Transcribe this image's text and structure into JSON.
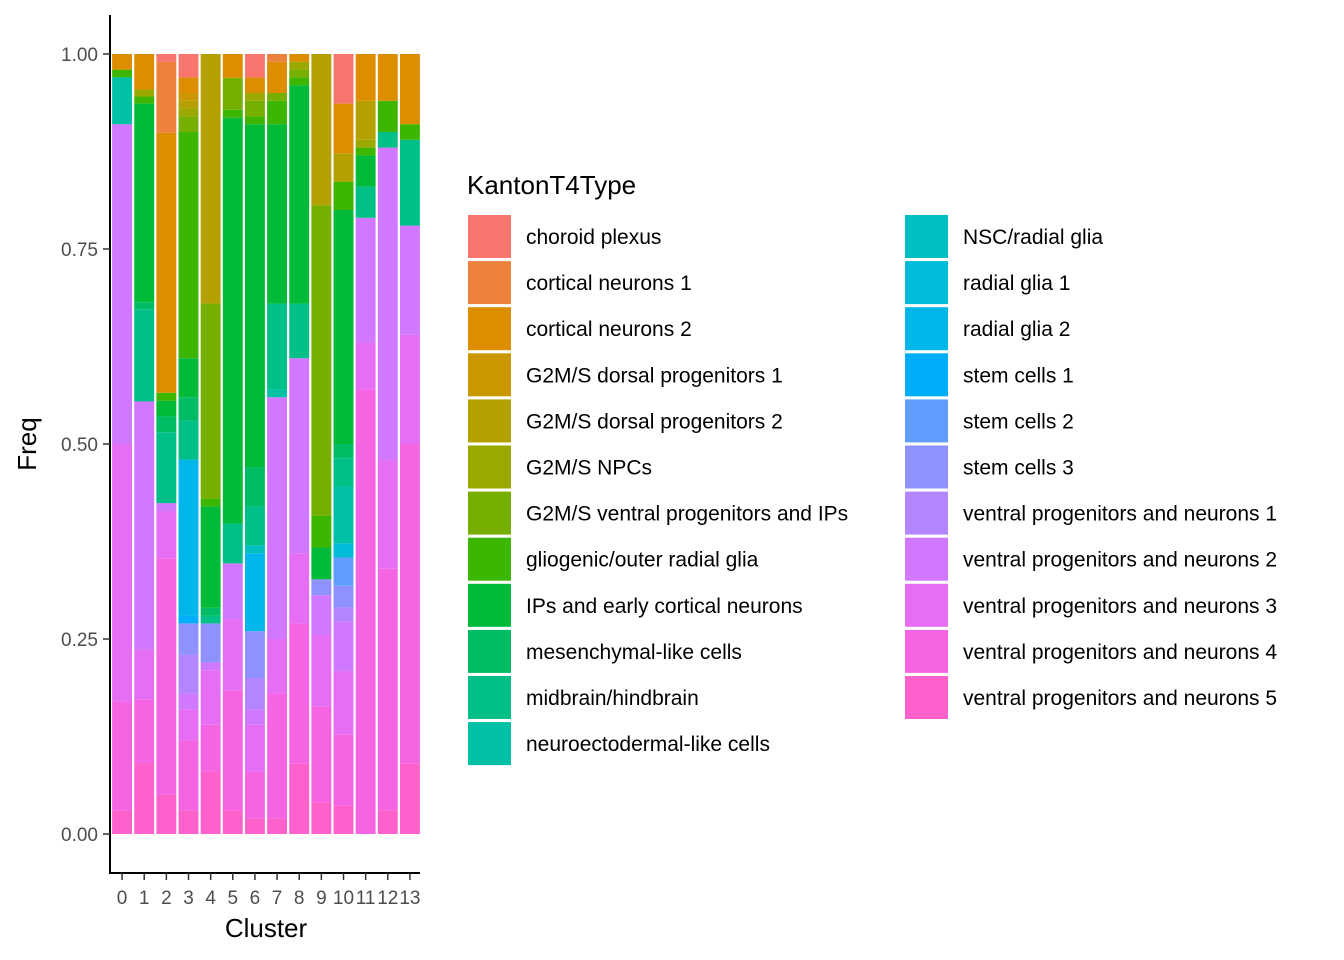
{
  "chart_data": {
    "type": "bar",
    "stacked": true,
    "xlabel": "Cluster",
    "ylabel": "Freq",
    "ylim": [
      0,
      1
    ],
    "yticks": [
      "0.00",
      "0.25",
      "0.50",
      "0.75",
      "1.00"
    ],
    "categories": [
      "0",
      "1",
      "2",
      "3",
      "4",
      "5",
      "6",
      "7",
      "8",
      "9",
      "10",
      "11",
      "12",
      "13"
    ],
    "legend_title": "KantonT4Type",
    "legend_position": "right",
    "series": [
      {
        "name": "choroid plexus",
        "color": "#F8766D",
        "values": [
          0,
          0,
          0.01,
          0.03,
          0,
          0,
          0.03,
          0,
          0,
          0,
          0.07,
          0,
          0,
          0
        ]
      },
      {
        "name": "cortical neurons 1",
        "color": "#EC823C",
        "values": [
          0,
          0,
          0.09,
          0,
          0,
          0,
          0,
          0.01,
          0,
          0,
          0,
          0,
          0,
          0
        ]
      },
      {
        "name": "cortical neurons 2",
        "color": "#DD8D00",
        "values": [
          0.02,
          0.05,
          0.33,
          0.02,
          0,
          0.03,
          0.02,
          0.04,
          0.01,
          0,
          0.07,
          0.06,
          0.06,
          0.09
        ]
      },
      {
        "name": "G2M/S dorsal progenitors 1",
        "color": "#CA9700",
        "values": [
          0,
          0,
          0,
          0.01,
          0,
          0,
          0,
          0,
          0,
          0,
          0,
          0,
          0,
          0
        ]
      },
      {
        "name": "G2M/S dorsal progenitors 2",
        "color": "#B4A000",
        "values": [
          0,
          0,
          0,
          0.01,
          0.32,
          0,
          0,
          0,
          0,
          0.19,
          0.04,
          0.05,
          0,
          0
        ]
      },
      {
        "name": "G2M/S NPCs",
        "color": "#9AA800",
        "values": [
          0,
          0.01,
          0,
          0.01,
          0,
          0,
          0.01,
          0,
          0.01,
          0,
          0,
          0.01,
          0,
          0
        ]
      },
      {
        "name": "G2M/S ventral progenitors and IPs",
        "color": "#77AF00",
        "values": [
          0,
          0,
          0,
          0.02,
          0.25,
          0.04,
          0.02,
          0.01,
          0.01,
          0.39,
          0,
          0,
          0,
          0
        ]
      },
      {
        "name": "gliogenic/outer radial glia",
        "color": "#3CB600",
        "values": [
          0.01,
          0.01,
          0.01,
          0.29,
          0.01,
          0.01,
          0.01,
          0.03,
          0.01,
          0.04,
          0.04,
          0.01,
          0.04,
          0.02
        ]
      },
      {
        "name": "IPs and early cortical neurons",
        "color": "#00BA38",
        "values": [
          0,
          0.28,
          0.02,
          0.05,
          0.13,
          0.51,
          0.44,
          0.23,
          0.28,
          0.04,
          0.33,
          0.04,
          0,
          0
        ]
      },
      {
        "name": "mesenchymal-like cells",
        "color": "#00BD65",
        "values": [
          0,
          0.01,
          0.02,
          0.03,
          0.01,
          0,
          0.05,
          0,
          0,
          0,
          0.02,
          0,
          0,
          0
        ]
      },
      {
        "name": "midbrain/hindbrain",
        "color": "#00BF87",
        "values": [
          0,
          0.13,
          0.09,
          0.05,
          0.01,
          0.05,
          0.05,
          0.11,
          0.07,
          0,
          0.04,
          0.04,
          0.02,
          0.11
        ]
      },
      {
        "name": "neuroectodermal-like cells",
        "color": "#00C0A5",
        "values": [
          0.06,
          0,
          0,
          0,
          0,
          0,
          0,
          0.01,
          0,
          0,
          0.08,
          0,
          0,
          0
        ]
      },
      {
        "name": "NSC/radial glia",
        "color": "#00BFC0",
        "values": [
          0,
          0,
          0,
          0,
          0,
          0,
          0.01,
          0,
          0,
          0,
          0,
          0,
          0,
          0
        ]
      },
      {
        "name": "radial glia 1",
        "color": "#00BCD8",
        "values": [
          0,
          0,
          0,
          0,
          0,
          0,
          0,
          0,
          0,
          0,
          0.02,
          0,
          0,
          0
        ]
      },
      {
        "name": "radial glia 2",
        "color": "#00B6EB",
        "values": [
          0,
          0,
          0,
          0.2,
          0,
          0,
          0.1,
          0,
          0,
          0,
          0,
          0,
          0,
          0
        ]
      },
      {
        "name": "stem cells 1",
        "color": "#00ADFA",
        "values": [
          0,
          0,
          0,
          0.01,
          0,
          0,
          0,
          0,
          0,
          0,
          0,
          0,
          0,
          0
        ]
      },
      {
        "name": "stem cells 2",
        "color": "#619CFF",
        "values": [
          0,
          0,
          0,
          0,
          0,
          0,
          0,
          0,
          0,
          0,
          0.04,
          0,
          0,
          0
        ]
      },
      {
        "name": "stem cells 3",
        "color": "#8F91FF",
        "values": [
          0,
          0,
          0,
          0.04,
          0.05,
          0,
          0.06,
          0,
          0,
          0.02,
          0.03,
          0,
          0,
          0
        ]
      },
      {
        "name": "ventral progenitors and neurons 1",
        "color": "#B385FF",
        "values": [
          0,
          0,
          0,
          0.05,
          0,
          0,
          0.04,
          0,
          0,
          0,
          0.02,
          0,
          0,
          0
        ]
      },
      {
        "name": "ventral progenitors and neurons 2",
        "color": "#D078FF",
        "values": [
          0.41,
          0.35,
          0.01,
          0.02,
          0.01,
          0.07,
          0.02,
          0.31,
          0.25,
          0.05,
          0.07,
          0.16,
          0.4,
          0.14
        ]
      },
      {
        "name": "ventral progenitors and neurons 3",
        "color": "#E56EF5",
        "values": [
          0.33,
          0.07,
          0.06,
          0.04,
          0.07,
          0.09,
          0.06,
          0.07,
          0.09,
          0.09,
          0.09,
          0.06,
          0.14,
          0.14
        ]
      },
      {
        "name": "ventral progenitors and neurons 4",
        "color": "#F565E3",
        "values": [
          0.14,
          0.09,
          0.3,
          0.09,
          0.06,
          0.15,
          0.06,
          0.16,
          0.18,
          0.12,
          0.1,
          0.57,
          0.31,
          0.41
        ]
      },
      {
        "name": "ventral progenitors and neurons 5",
        "color": "#FF61CC",
        "values": [
          0.03,
          0.1,
          0.05,
          0.03,
          0.08,
          0.03,
          0.02,
          0.02,
          0.09,
          0.04,
          0.04,
          0,
          0.03,
          0.09
        ]
      }
    ]
  }
}
